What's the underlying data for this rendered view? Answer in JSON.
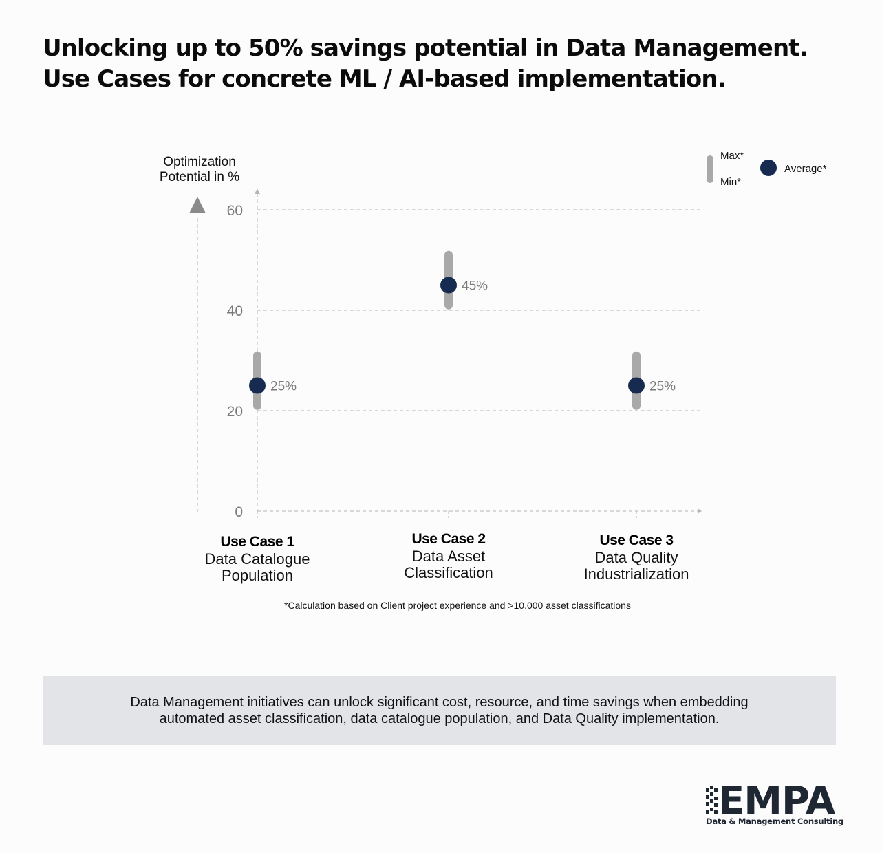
{
  "title": {
    "line1": "Unlocking up to 50% savings potential in Data Management.",
    "line2": "Use Cases for concrete ML / AI-based implementation."
  },
  "chart_data": {
    "type": "scatter",
    "ylabel": [
      "Optimization",
      "Potential in %"
    ],
    "ylim": [
      0,
      60
    ],
    "yticks": [
      0,
      20,
      40,
      60
    ],
    "grid": true,
    "legend": {
      "placement": "top-right",
      "range_max": "Max*",
      "range_min": "Min*",
      "average": "Average*"
    },
    "categories": [
      {
        "title": "Use Case 1",
        "lines": [
          "Data Catalogue",
          "Population"
        ]
      },
      {
        "title": "Use Case 2",
        "lines": [
          "Data Asset",
          "Classification"
        ]
      },
      {
        "title": "Use Case 3",
        "lines": [
          "Data Quality",
          "Industrialization"
        ]
      }
    ],
    "series": [
      {
        "name": "Average*",
        "values": [
          25,
          45,
          25
        ],
        "labels": [
          "25%",
          "45%",
          "25%"
        ]
      },
      {
        "name": "Min*",
        "values": [
          21,
          41,
          21
        ]
      },
      {
        "name": "Max*",
        "values": [
          31,
          51,
          31
        ]
      }
    ],
    "colors": {
      "average": "#162b4f",
      "range": "#a9a9a9",
      "grid": "#b5b5b5",
      "axis_text": "#7a7a7a"
    }
  },
  "note": "*Calculation based on Client project experience and >10.000 asset classifications",
  "summary": {
    "line1": "Data Management initiatives can unlock significant cost, resource, and time savings when embedding",
    "line2": "automated asset classification, data catalogue population, and Data Quality implementation."
  },
  "logo": {
    "word": "EMPA",
    "tagline": "Data & Management Consulting"
  }
}
